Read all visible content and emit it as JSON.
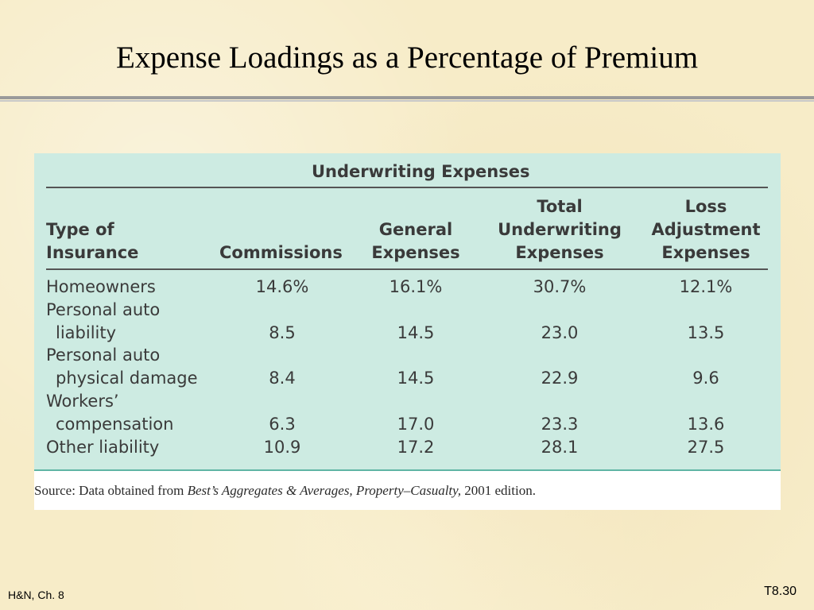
{
  "slide": {
    "title": "Expense Loadings as a Percentage of Premium",
    "footer_left": "H&N, Ch. 8",
    "footer_right": "T8.30"
  },
  "table": {
    "group_header": "Underwriting Expenses",
    "headers": {
      "type_line1": "Type of",
      "type_line2": "Insurance",
      "commissions": "Commissions",
      "general_line1": "General",
      "general_line2": "Expenses",
      "total_line1": "Total",
      "total_line2": "Underwriting",
      "total_line3": "Expenses",
      "loss_line1": "Loss",
      "loss_line2": "Adjustment",
      "loss_line3": "Expenses"
    },
    "rows": [
      {
        "label1": "Homeowners",
        "label2": "",
        "commissions": "14.6%",
        "general": "16.1%",
        "total": "30.7%",
        "loss": "12.1%"
      },
      {
        "label1": "Personal auto",
        "label2": "liability",
        "commissions": "8.5",
        "general": "14.5",
        "total": "23.0",
        "loss": "13.5"
      },
      {
        "label1": "Personal auto",
        "label2": "physical damage",
        "commissions": "8.4",
        "general": "14.5",
        "total": "22.9",
        "loss": "9.6"
      },
      {
        "label1": "Workers’",
        "label2": "compensation",
        "commissions": "6.3",
        "general": "17.0",
        "total": "23.3",
        "loss": "13.6"
      },
      {
        "label1": "Other liability",
        "label2": "",
        "commissions": "10.9",
        "general": "17.2",
        "total": "28.1",
        "loss": "27.5"
      }
    ],
    "source_prefix": "Source: Data obtained from ",
    "source_italic": "Best’s Aggregates & Averages, Property–Casualty,",
    "source_suffix": " 2001 edition."
  },
  "colors": {
    "background": "#f7ecc8",
    "table_fill": "#cdebe2",
    "table_border": "#5fb5a5"
  }
}
